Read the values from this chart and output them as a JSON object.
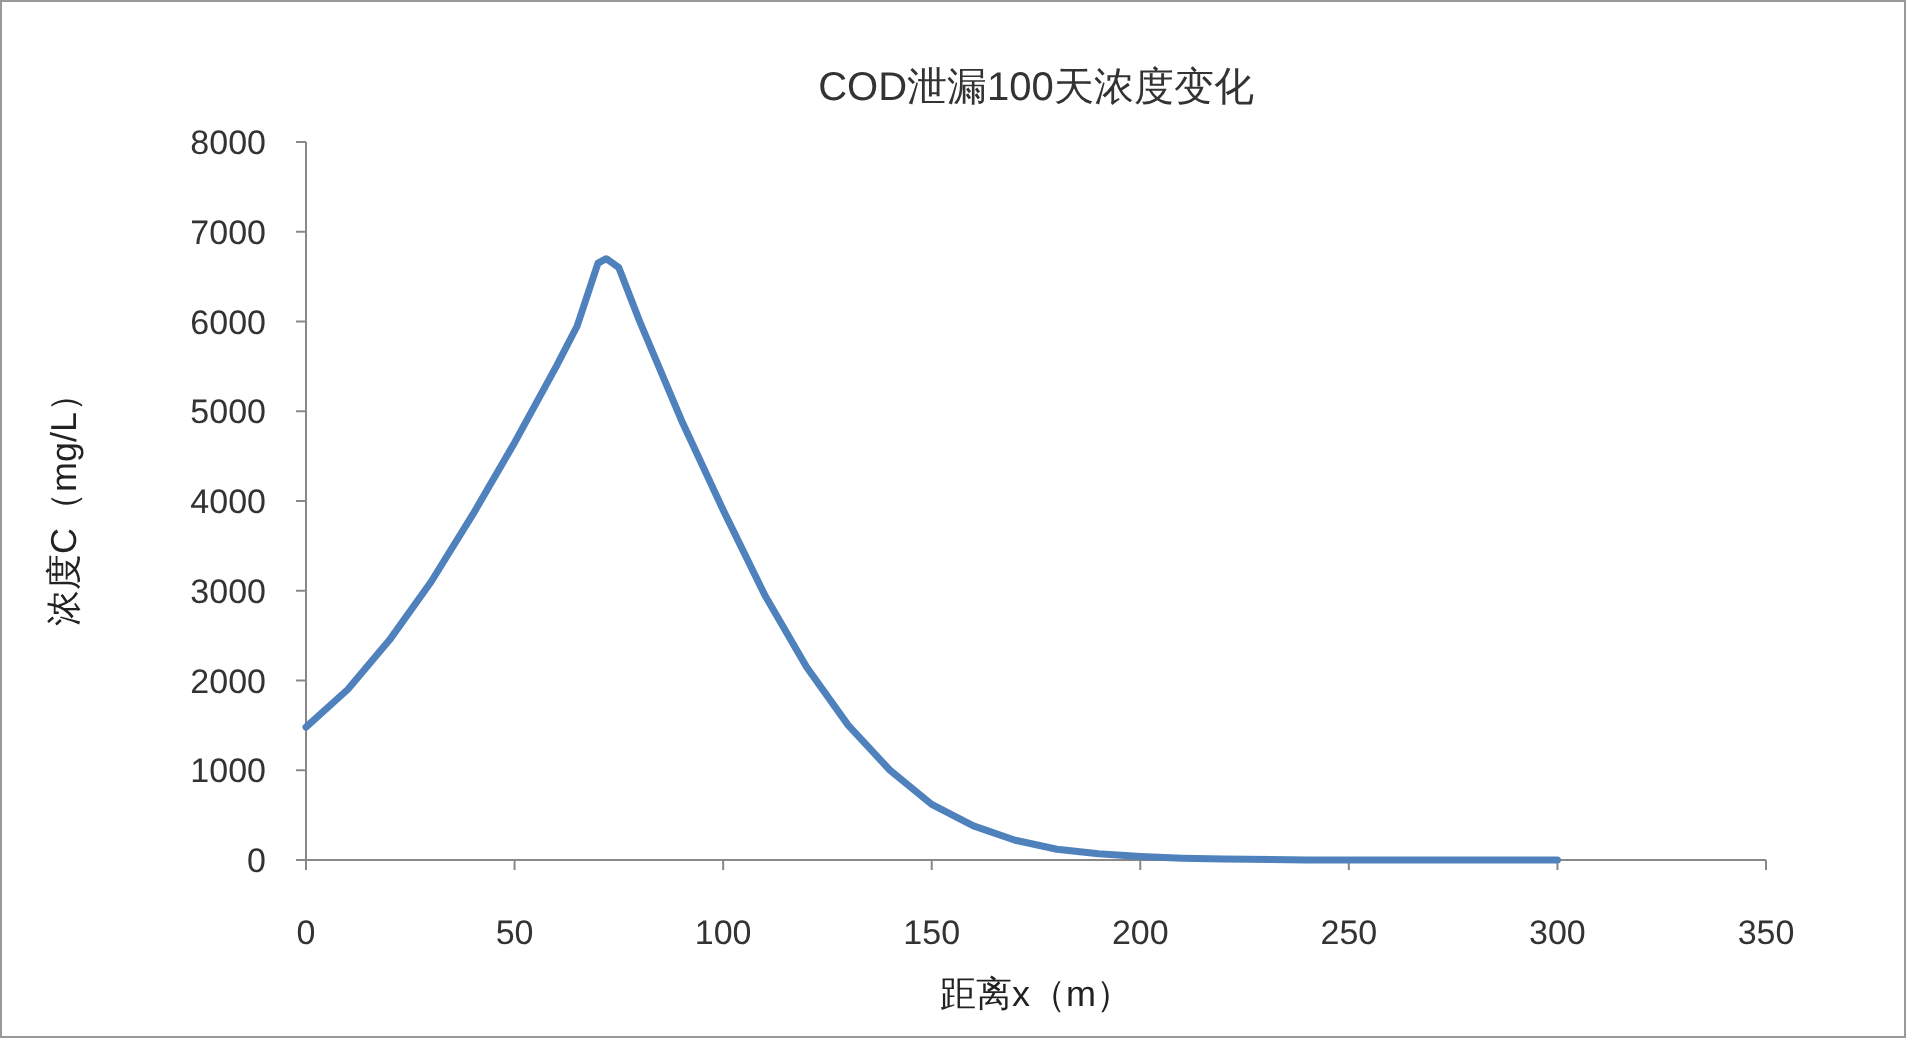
{
  "chart_data": {
    "type": "line",
    "title": "COD泄漏100天浓度变化",
    "xlabel": "距离x（m）",
    "ylabel": "浓度C（mg/L）",
    "x": [
      0,
      10,
      20,
      30,
      40,
      50,
      60,
      65,
      70,
      72,
      75,
      80,
      90,
      100,
      110,
      120,
      130,
      140,
      150,
      160,
      170,
      180,
      190,
      200,
      210,
      220,
      240,
      260,
      300
    ],
    "series": [
      {
        "color": "#4f81bd",
        "values": [
          1480,
          1900,
          2450,
          3100,
          3850,
          4650,
          5500,
          5950,
          6650,
          6700,
          6600,
          6000,
          4900,
          3900,
          2950,
          2150,
          1500,
          1000,
          620,
          380,
          220,
          120,
          70,
          40,
          20,
          10,
          0,
          0,
          0
        ]
      }
    ],
    "xlim": [
      0,
      350
    ],
    "xticks": [
      0,
      50,
      100,
      150,
      200,
      250,
      300,
      350
    ],
    "ylim": [
      0,
      8000
    ],
    "yticks": [
      0,
      1000,
      2000,
      3000,
      4000,
      5000,
      6000,
      7000,
      8000
    ],
    "grid": false,
    "marker": "none",
    "line_style": "solid"
  }
}
